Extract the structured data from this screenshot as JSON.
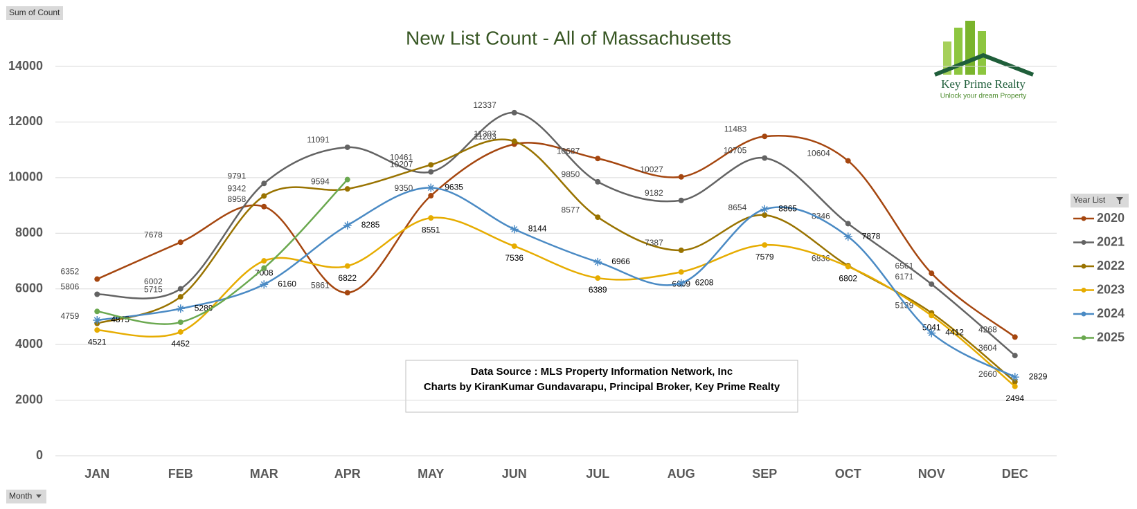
{
  "chart_data": {
    "type": "line",
    "title": "New List Count - All of Massachusetts",
    "field_button_value": "Sum of Count",
    "field_button_axis": "Month",
    "legend_title": "Year List",
    "legend": "right",
    "grid": true,
    "smooth": true,
    "note": [
      "Data Source : MLS Property Information Network, Inc",
      "Charts by KiranKumar Gundavarapu, Principal Broker, Key Prime Realty"
    ],
    "logo": {
      "name": "Key Prime Realty",
      "tagline": "Unlock your dream Property"
    },
    "categories": [
      "JAN",
      "FEB",
      "MAR",
      "APR",
      "MAY",
      "JUN",
      "JUL",
      "AUG",
      "SEP",
      "OCT",
      "NOV",
      "DEC"
    ],
    "ylim": [
      0,
      14000
    ],
    "yticks": [
      0,
      2000,
      4000,
      6000,
      8000,
      10000,
      12000,
      14000
    ],
    "series": [
      {
        "name": "2020",
        "color": "#a5460f",
        "marker": "circle",
        "data_labels": true,
        "values": [
          6352,
          7678,
          8958,
          5861,
          9350,
          11203,
          10687,
          10027,
          11483,
          10604,
          6561,
          4268
        ]
      },
      {
        "name": "2021",
        "color": "#636363",
        "marker": "circle",
        "data_labels": true,
        "values": [
          5806,
          6002,
          9791,
          11091,
          10207,
          12337,
          9850,
          9182,
          10705,
          8346,
          6171,
          3604
        ]
      },
      {
        "name": "2022",
        "color": "#997300",
        "marker": "circle",
        "data_labels": true,
        "values": [
          4759,
          5715,
          9342,
          9594,
          10461,
          11307,
          8577,
          7387,
          8654,
          6836,
          5139,
          2660
        ]
      },
      {
        "name": "2023",
        "color": "#e6ac00",
        "marker": "circle",
        "data_labels": true,
        "values": [
          4521,
          4452,
          7008,
          6822,
          8551,
          7536,
          6389,
          6609,
          7579,
          6802,
          5041,
          2494
        ]
      },
      {
        "name": "2024",
        "color": "#4a8ac4",
        "marker": "star",
        "data_labels": true,
        "values": [
          4875,
          5289,
          6160,
          8285,
          9635,
          8144,
          6966,
          6208,
          8865,
          7878,
          4412,
          2829
        ]
      },
      {
        "name": "2025",
        "color": "#6aa84f",
        "marker": "circle",
        "data_labels": false,
        "values": [
          5190,
          4800,
          6750,
          9930,
          null,
          null,
          null,
          null,
          null,
          null,
          null,
          null
        ]
      }
    ]
  }
}
